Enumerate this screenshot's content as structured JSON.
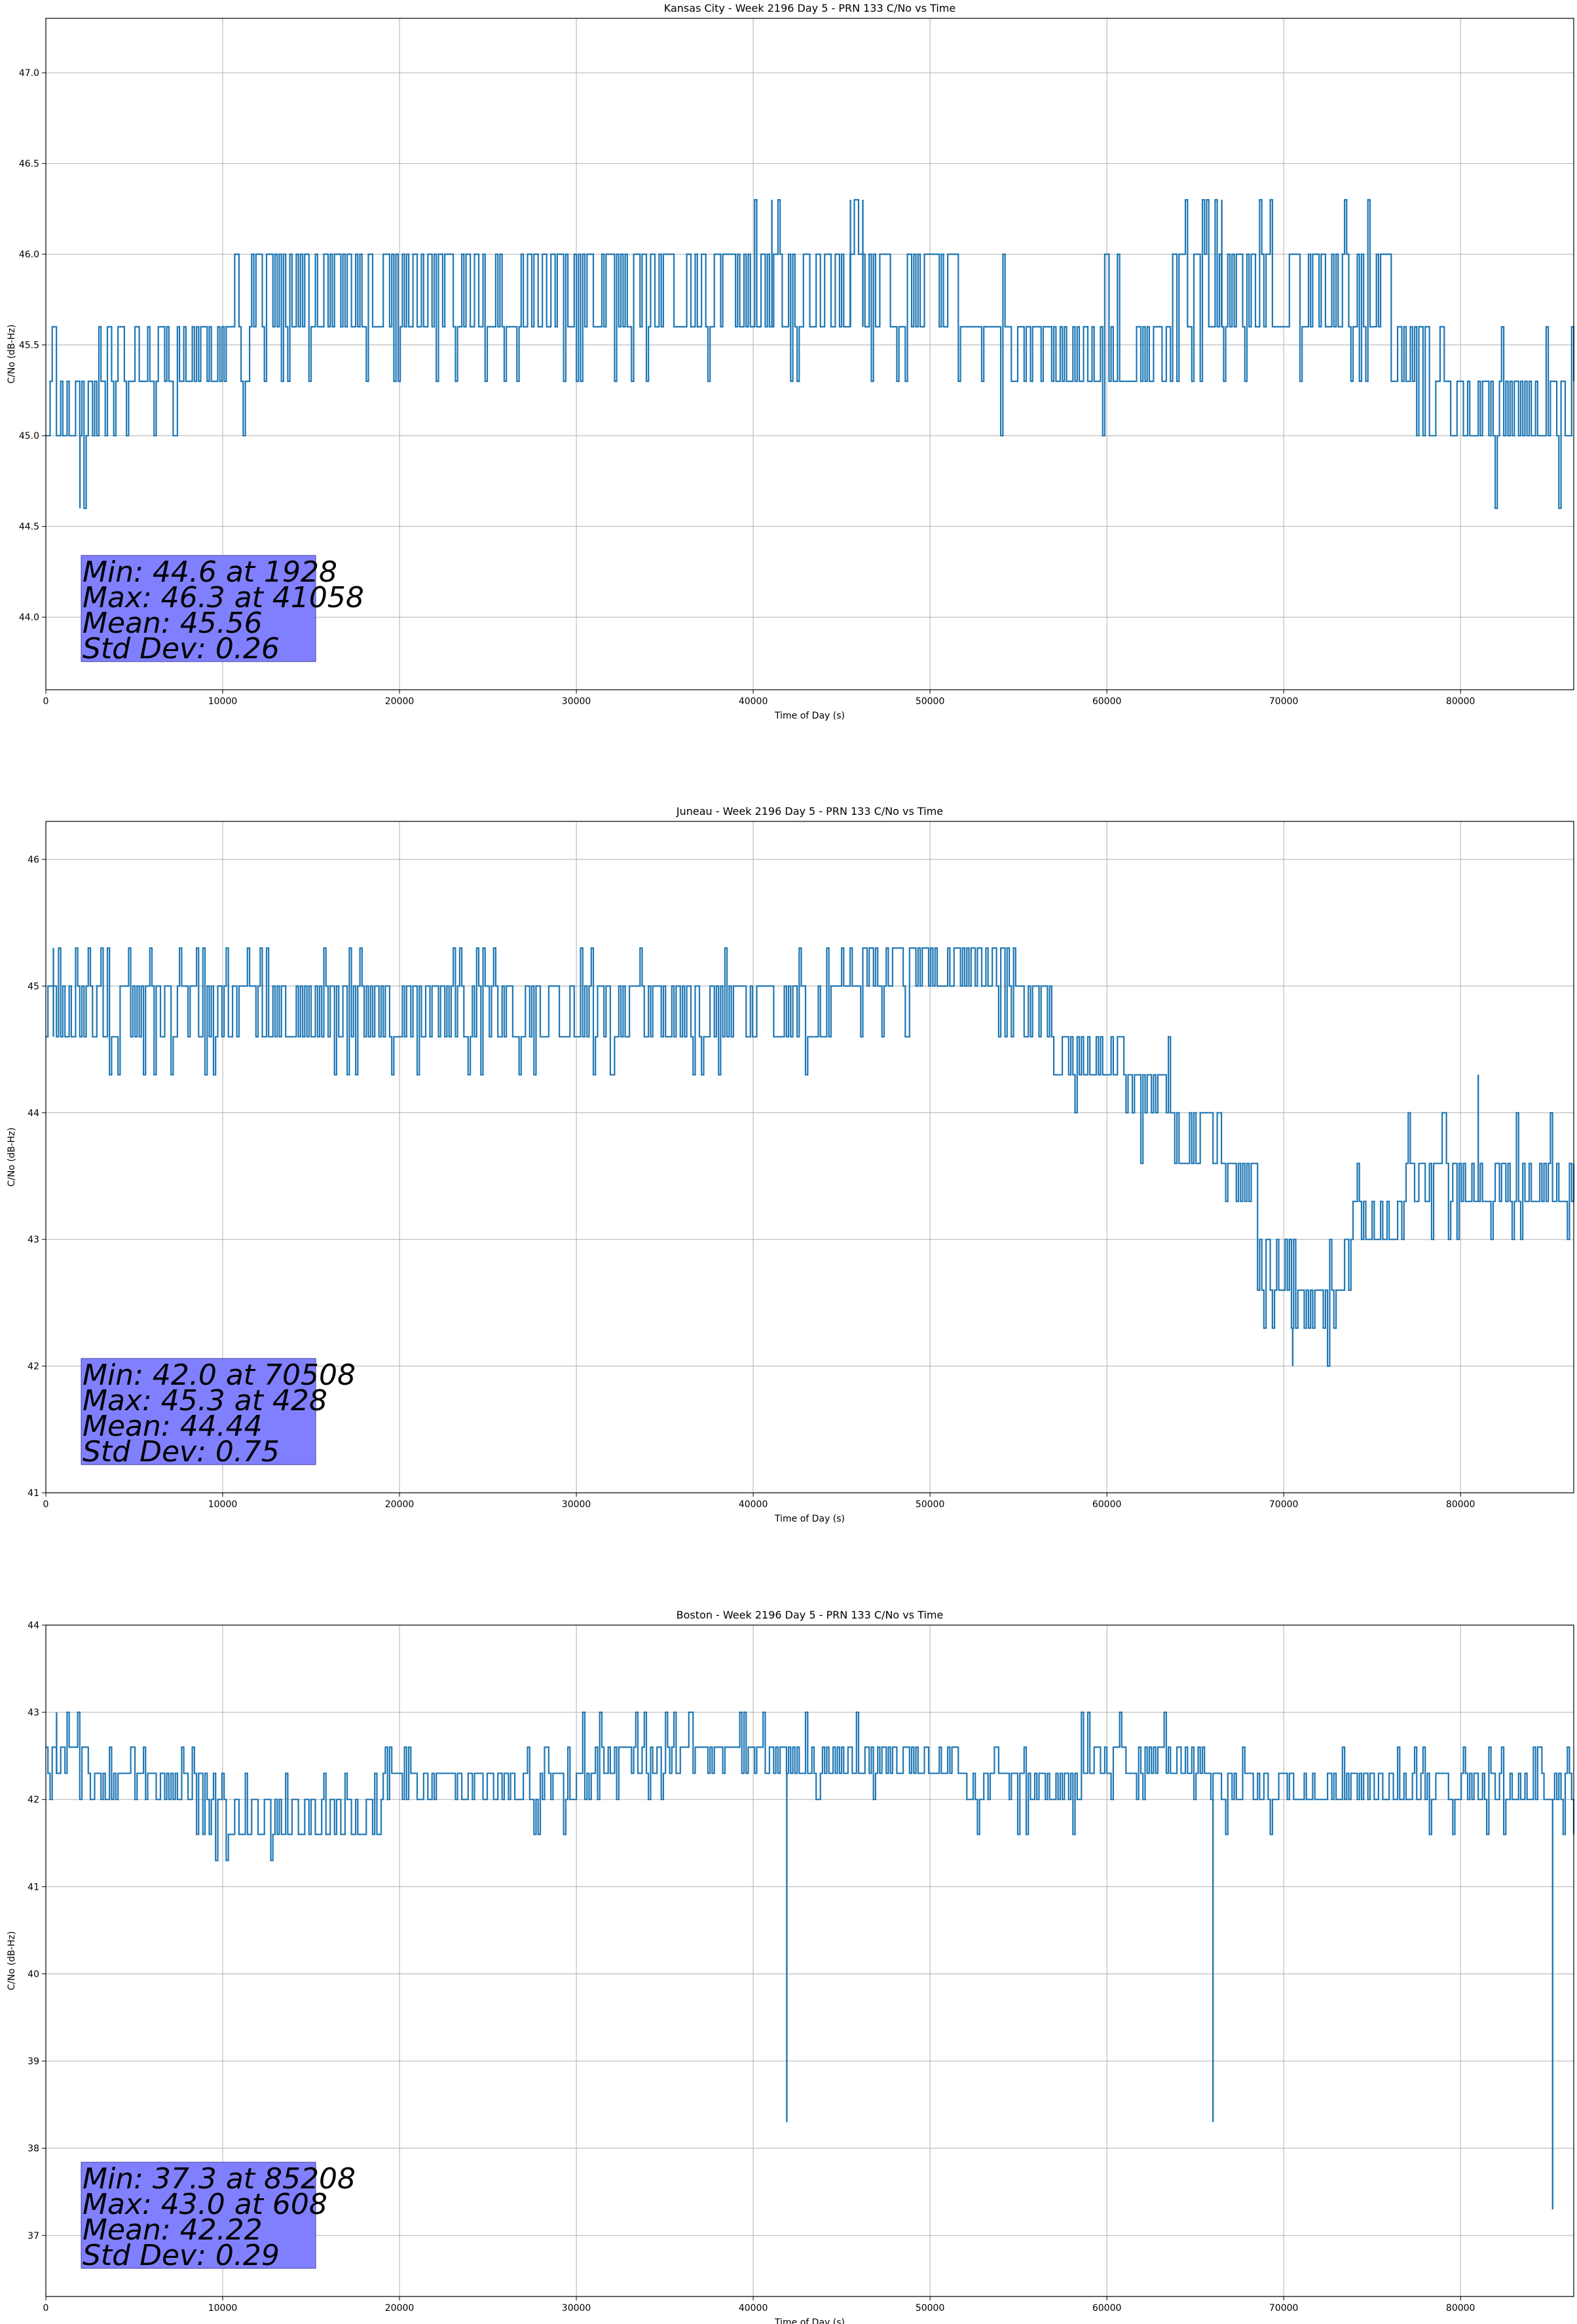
{
  "chart_data": [
    {
      "type": "line",
      "title": "Kansas City - Week 2196 Day 5 - PRN 133 C/No vs Time",
      "xlabel": "Time of Day (s)",
      "ylabel": "C/No (dB-Hz)",
      "xlim": [
        0,
        86400
      ],
      "ylim": [
        43.6,
        47.3
      ],
      "x_ticks": [
        0,
        10000,
        20000,
        30000,
        40000,
        50000,
        60000,
        70000,
        80000
      ],
      "x_tick_labels": [
        "0",
        "10000",
        "20000",
        "30000",
        "40000",
        "50000",
        "60000",
        "70000",
        "80000"
      ],
      "y_ticks": [
        44.0,
        44.5,
        45.0,
        45.5,
        46.0,
        46.5,
        47.0
      ],
      "y_tick_labels": [
        "44.0",
        "44.5",
        "45.0",
        "45.5",
        "46.0",
        "46.5",
        "47.0"
      ],
      "grid": true,
      "line_color": "#1f77b4",
      "stats_color": "#8080ff",
      "stats_lines": [
        "Min: 44.6 at 1928",
        "Max: 46.3 at 41058",
        "Mean: 45.56",
        "Std Dev: 0.26"
      ],
      "seed": 11,
      "levels_profile": [
        {
          "x": 0,
          "band": [
            45.0,
            45.3
          ],
          "spikes": [
            45.6
          ],
          "dips": [
            44.6
          ]
        },
        {
          "x": 3000,
          "band": [
            45.3,
            45.6
          ],
          "spikes": [
            45.0
          ],
          "dips": [
            45.0
          ]
        },
        {
          "x": 9500,
          "band": [
            45.3,
            45.6
          ],
          "spikes": [
            46.0
          ],
          "dips": [
            45.0
          ]
        },
        {
          "x": 11500,
          "band": [
            45.6,
            46.0
          ],
          "spikes": [
            45.3
          ],
          "dips": [
            45.3
          ]
        },
        {
          "x": 20000,
          "band": [
            45.6,
            46.0
          ],
          "spikes": [
            45.3
          ],
          "dips": [
            45.3
          ]
        },
        {
          "x": 40000,
          "band": [
            45.6,
            46.0
          ],
          "spikes": [
            46.3
          ],
          "dips": [
            45.3
          ]
        },
        {
          "x": 52000,
          "band": [
            45.6,
            45.6
          ],
          "spikes": [
            46.0
          ],
          "dips": [
            45.3
          ]
        },
        {
          "x": 54000,
          "band": [
            45.3,
            45.6
          ],
          "spikes": [
            46.0
          ],
          "dips": [
            45.0
          ]
        },
        {
          "x": 64000,
          "band": [
            45.6,
            46.0
          ],
          "spikes": [
            46.3
          ],
          "dips": [
            45.3
          ]
        },
        {
          "x": 76000,
          "band": [
            45.3,
            45.6
          ],
          "spikes": [
            45.0
          ],
          "dips": [
            45.0
          ]
        },
        {
          "x": 79000,
          "band": [
            45.0,
            45.3
          ],
          "spikes": [
            45.6
          ],
          "dips": [
            44.6
          ]
        }
      ],
      "extreme_points": [
        {
          "x": 1928,
          "y": 44.6
        },
        {
          "x": 41058,
          "y": 46.3
        },
        {
          "x": 45500,
          "y": 46.3
        },
        {
          "x": 46200,
          "y": 46.3
        },
        {
          "x": 66500,
          "y": 46.3
        }
      ]
    },
    {
      "type": "line",
      "title": "Juneau - Week 2196 Day 5 - PRN 133 C/No vs Time",
      "xlabel": "Time of Day (s)",
      "ylabel": "C/No (dB-Hz)",
      "xlim": [
        0,
        86400
      ],
      "ylim": [
        41.0,
        46.3
      ],
      "x_ticks": [
        0,
        10000,
        20000,
        30000,
        40000,
        50000,
        60000,
        70000,
        80000
      ],
      "x_tick_labels": [
        "0",
        "10000",
        "20000",
        "30000",
        "40000",
        "50000",
        "60000",
        "70000",
        "80000"
      ],
      "y_ticks": [
        41,
        42,
        43,
        44,
        45,
        46
      ],
      "y_tick_labels": [
        "41",
        "42",
        "43",
        "44",
        "45",
        "46"
      ],
      "grid": true,
      "line_color": "#1f77b4",
      "stats_color": "#8080ff",
      "stats_lines": [
        "Min: 42.0 at 70508",
        "Max: 45.3 at 428",
        "Mean: 44.44",
        "Std Dev: 0.75"
      ],
      "seed": 23,
      "levels_profile": [
        {
          "x": 0,
          "band": [
            44.6,
            45.0
          ],
          "spikes": [
            45.3
          ],
          "dips": [
            44.3
          ]
        },
        {
          "x": 44000,
          "band": [
            44.6,
            45.0
          ],
          "spikes": [
            45.3
          ],
          "dips": [
            44.6
          ]
        },
        {
          "x": 44500,
          "band": [
            45.0,
            45.3
          ],
          "spikes": [
            44.6
          ],
          "dips": [
            44.6
          ]
        },
        {
          "x": 54500,
          "band": [
            44.6,
            45.0
          ],
          "spikes": [
            45.3
          ],
          "dips": [
            44.3
          ]
        },
        {
          "x": 57000,
          "band": [
            44.3,
            44.6
          ],
          "spikes": [
            45.0
          ],
          "dips": [
            44.0
          ]
        },
        {
          "x": 61000,
          "band": [
            44.0,
            44.3
          ],
          "spikes": [
            44.6
          ],
          "dips": [
            43.6
          ]
        },
        {
          "x": 63500,
          "band": [
            43.6,
            44.0
          ],
          "spikes": [
            44.3
          ],
          "dips": [
            43.3
          ]
        },
        {
          "x": 66500,
          "band": [
            43.3,
            43.6
          ],
          "spikes": [
            44.0
          ],
          "dips": [
            43.0
          ]
        },
        {
          "x": 68500,
          "band": [
            42.6,
            43.0
          ],
          "spikes": [
            43.3
          ],
          "dips": [
            42.3
          ]
        },
        {
          "x": 70500,
          "band": [
            42.3,
            42.6
          ],
          "spikes": [
            43.0
          ],
          "dips": [
            42.0
          ]
        },
        {
          "x": 72500,
          "band": [
            42.6,
            43.0
          ],
          "spikes": [
            43.3
          ],
          "dips": [
            42.3
          ]
        },
        {
          "x": 74000,
          "band": [
            43.0,
            43.3
          ],
          "spikes": [
            43.6
          ],
          "dips": [
            42.6
          ]
        },
        {
          "x": 77000,
          "band": [
            43.3,
            43.6
          ],
          "spikes": [
            44.0
          ],
          "dips": [
            43.0
          ]
        }
      ],
      "extreme_points": [
        {
          "x": 428,
          "y": 45.3
        },
        {
          "x": 70508,
          "y": 42.0
        },
        {
          "x": 81000,
          "y": 44.3
        }
      ]
    },
    {
      "type": "line",
      "title": "Boston - Week 2196 Day 5 - PRN 133 C/No vs Time",
      "xlabel": "Time of Day (s)",
      "ylabel": "C/No (dB-Hz)",
      "xlim": [
        0,
        86400
      ],
      "ylim": [
        36.3,
        44.0
      ],
      "x_ticks": [
        0,
        10000,
        20000,
        30000,
        40000,
        50000,
        60000,
        70000,
        80000
      ],
      "x_tick_labels": [
        "0",
        "10000",
        "20000",
        "30000",
        "40000",
        "50000",
        "60000",
        "70000",
        "80000"
      ],
      "y_ticks": [
        37,
        38,
        39,
        40,
        41,
        42,
        43,
        44
      ],
      "y_tick_labels": [
        "37",
        "38",
        "39",
        "40",
        "41",
        "42",
        "43",
        "44"
      ],
      "grid": true,
      "line_color": "#1f77b4",
      "stats_color": "#8080ff",
      "stats_lines": [
        "Min: 37.3 at 85208",
        "Max: 43.0 at 608",
        "Mean: 42.22",
        "Std Dev: 0.29"
      ],
      "seed": 37,
      "levels_profile": [
        {
          "x": 0,
          "band": [
            42.3,
            42.6
          ],
          "spikes": [
            43.0
          ],
          "dips": [
            42.0
          ]
        },
        {
          "x": 2500,
          "band": [
            42.0,
            42.3
          ],
          "spikes": [
            42.6
          ],
          "dips": [
            41.6
          ]
        },
        {
          "x": 9500,
          "band": [
            41.6,
            42.0
          ],
          "spikes": [
            42.3
          ],
          "dips": [
            41.3
          ]
        },
        {
          "x": 16500,
          "band": [
            41.6,
            42.0
          ],
          "spikes": [
            42.3
          ],
          "dips": [
            41.6
          ]
        },
        {
          "x": 19000,
          "band": [
            42.0,
            42.3
          ],
          "spikes": [
            42.6
          ],
          "dips": [
            41.6
          ]
        },
        {
          "x": 26000,
          "band": [
            42.0,
            42.3
          ],
          "spikes": [
            42.6
          ],
          "dips": [
            41.6
          ]
        },
        {
          "x": 30000,
          "band": [
            42.3,
            42.6
          ],
          "spikes": [
            43.0
          ],
          "dips": [
            42.0
          ]
        },
        {
          "x": 51500,
          "band": [
            42.0,
            42.3
          ],
          "spikes": [
            42.6
          ],
          "dips": [
            41.6
          ]
        },
        {
          "x": 58500,
          "band": [
            42.3,
            42.6
          ],
          "spikes": [
            43.0
          ],
          "dips": [
            42.0
          ]
        },
        {
          "x": 65500,
          "band": [
            42.0,
            42.3
          ],
          "spikes": [
            42.6
          ],
          "dips": [
            41.6
          ]
        }
      ],
      "extreme_points": [
        {
          "x": 608,
          "y": 43.0
        },
        {
          "x": 41900,
          "y": 38.3
        },
        {
          "x": 66000,
          "y": 38.3
        },
        {
          "x": 85208,
          "y": 37.3
        }
      ]
    }
  ]
}
